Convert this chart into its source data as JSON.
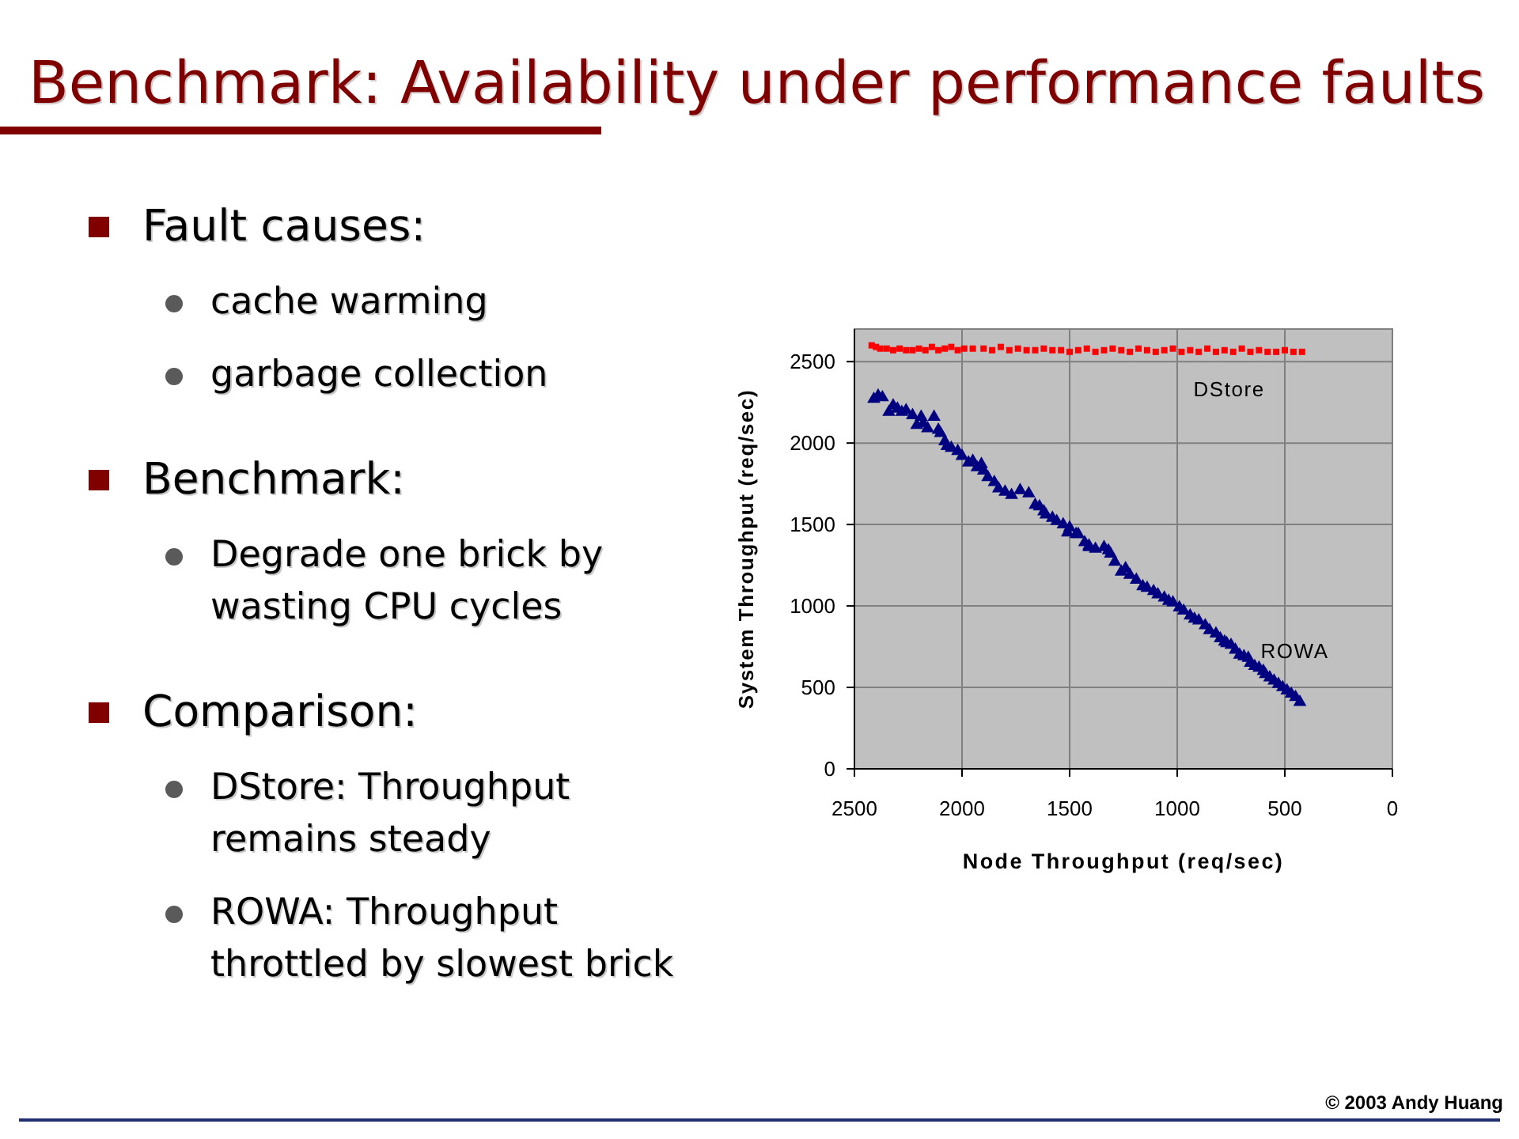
{
  "chart_data": {
    "type": "scatter",
    "title": "Benchmark: Availability under performance faults",
    "xlabel": "Node Throughput (req/sec)",
    "ylabel": "System Throughput (req/sec)",
    "annotations": [
      "Fault causes:",
      "cache warming",
      "garbage collection",
      "Benchmark:",
      "Degrade one brick by wasting CPU cycles",
      "Comparison:",
      "DStore: Throughput remains steady",
      "ROWA: Throughput throttled by slowest brick",
      "© 2003 Andy Huang"
    ],
    "xlim": [
      2500,
      0
    ],
    "ylim": [
      0,
      2700
    ],
    "xticks": [
      2500,
      2000,
      1500,
      1000,
      500,
      0
    ],
    "yticks": [
      0,
      500,
      1000,
      1500,
      2000,
      2500
    ],
    "grid": true,
    "series": [
      {
        "name": "DStore",
        "color": "#ff0000",
        "marker": "square",
        "x": [
          2420,
          2400,
          2380,
          2350,
          2320,
          2290,
          2260,
          2230,
          2200,
          2170,
          2140,
          2110,
          2080,
          2050,
          2020,
          1990,
          1950,
          1900,
          1860,
          1820,
          1780,
          1740,
          1700,
          1660,
          1620,
          1580,
          1540,
          1500,
          1460,
          1420,
          1380,
          1340,
          1300,
          1260,
          1220,
          1180,
          1140,
          1100,
          1060,
          1020,
          980,
          940,
          900,
          860,
          820,
          780,
          740,
          700,
          660,
          620,
          580,
          540,
          500,
          460,
          420
        ],
        "values": [
          2600,
          2590,
          2580,
          2580,
          2570,
          2580,
          2570,
          2570,
          2580,
          2570,
          2590,
          2570,
          2580,
          2590,
          2570,
          2580,
          2580,
          2580,
          2570,
          2590,
          2570,
          2580,
          2570,
          2570,
          2580,
          2570,
          2570,
          2560,
          2570,
          2580,
          2560,
          2570,
          2580,
          2570,
          2560,
          2580,
          2570,
          2560,
          2570,
          2580,
          2560,
          2570,
          2560,
          2580,
          2560,
          2570,
          2560,
          2580,
          2560,
          2570,
          2560,
          2560,
          2570,
          2560,
          2560
        ]
      },
      {
        "name": "ROWA",
        "color": "#000080",
        "marker": "triangle",
        "x": [
          2410,
          2390,
          2370,
          2340,
          2320,
          2300,
          2280,
          2260,
          2230,
          2210,
          2190,
          2180,
          2160,
          2130,
          2110,
          2100,
          2080,
          2070,
          2050,
          2020,
          2000,
          1970,
          1950,
          1930,
          1910,
          1900,
          1880,
          1850,
          1830,
          1800,
          1770,
          1730,
          1690,
          1660,
          1640,
          1620,
          1610,
          1580,
          1560,
          1530,
          1510,
          1500,
          1470,
          1460,
          1430,
          1410,
          1410,
          1380,
          1340,
          1320,
          1310,
          1290,
          1260,
          1240,
          1220,
          1190,
          1160,
          1140,
          1110,
          1090,
          1060,
          1040,
          1020,
          990,
          970,
          940,
          920,
          900,
          870,
          850,
          820,
          800,
          780,
          770,
          750,
          730,
          710,
          690,
          670,
          660,
          640,
          620,
          600,
          590,
          570,
          550,
          530,
          510,
          490,
          470,
          450,
          430
        ],
        "values": [
          2270,
          2290,
          2280,
          2190,
          2230,
          2210,
          2190,
          2200,
          2170,
          2110,
          2160,
          2120,
          2090,
          2160,
          2080,
          2060,
          2010,
          1980,
          1970,
          1950,
          1920,
          1880,
          1890,
          1850,
          1870,
          1830,
          1790,
          1760,
          1720,
          1700,
          1680,
          1710,
          1690,
          1620,
          1610,
          1580,
          1560,
          1540,
          1520,
          1500,
          1450,
          1480,
          1440,
          1440,
          1390,
          1370,
          1360,
          1350,
          1360,
          1340,
          1320,
          1270,
          1210,
          1230,
          1190,
          1160,
          1120,
          1110,
          1090,
          1070,
          1050,
          1030,
          1020,
          990,
          970,
          940,
          920,
          910,
          880,
          850,
          830,
          800,
          780,
          770,
          760,
          730,
          700,
          690,
          680,
          650,
          630,
          620,
          600,
          580,
          560,
          540,
          520,
          500,
          480,
          460,
          440,
          410
        ]
      }
    ]
  }
}
